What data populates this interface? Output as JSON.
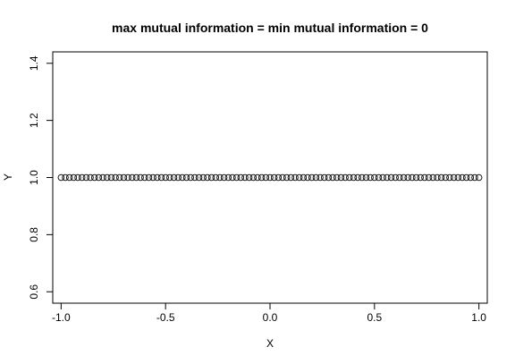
{
  "chart_data": {
    "type": "scatter",
    "title": "max mutual information = min mutual information = 0",
    "xlabel": "X",
    "ylabel": "Y",
    "xlim": [
      -1.04,
      1.04
    ],
    "ylim": [
      0.56,
      1.44
    ],
    "xticks": [
      -1.0,
      -0.5,
      0.0,
      0.5,
      1.0
    ],
    "xtick_labels": [
      "-1.0",
      "-0.5",
      "0.0",
      "0.5",
      "1.0"
    ],
    "yticks": [
      0.6,
      0.8,
      1.0,
      1.2,
      1.4
    ],
    "ytick_labels": [
      "0.6",
      "0.8",
      "1.0",
      "1.2",
      "1.4"
    ],
    "grid": false,
    "marker": "open-circle",
    "series": [
      {
        "x_start": -1.0,
        "x_end": 1.0,
        "n_points": 101,
        "y": 1.0
      }
    ]
  }
}
